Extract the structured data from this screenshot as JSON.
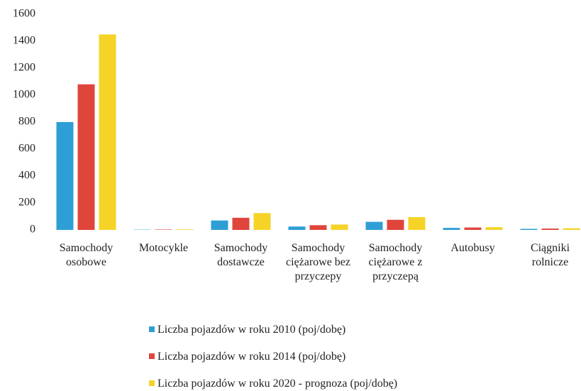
{
  "chart_data": {
    "type": "bar",
    "categories": [
      "Samochody osobowe",
      "Motocykle",
      "Samochody dostawcze",
      "Samochody ciężarowe bez przyczepy",
      "Samochody ciężarowe z przyczepą",
      "Autobusy",
      "Ciągniki rolnicze"
    ],
    "series": [
      {
        "name": "Liczba pojazdów w roku 2010 (poj/dobę)",
        "color": "#2e9fd6",
        "values": [
          800,
          2,
          70,
          25,
          60,
          15,
          8
        ]
      },
      {
        "name": "Liczba pojazdów w roku 2014 (poj/dobę)",
        "color": "#e0453c",
        "values": [
          1080,
          3,
          90,
          35,
          75,
          18,
          10
        ]
      },
      {
        "name": "Liczba pojazdów w roku 2020 - prognoza (poj/dobę)",
        "color": "#f5d327",
        "values": [
          1450,
          4,
          125,
          40,
          95,
          20,
          12
        ]
      }
    ],
    "ylim": [
      0,
      1600
    ],
    "yticks": [
      0,
      200,
      400,
      600,
      800,
      1000,
      1200,
      1400,
      1600
    ],
    "grid": false,
    "legend": "bottom"
  }
}
